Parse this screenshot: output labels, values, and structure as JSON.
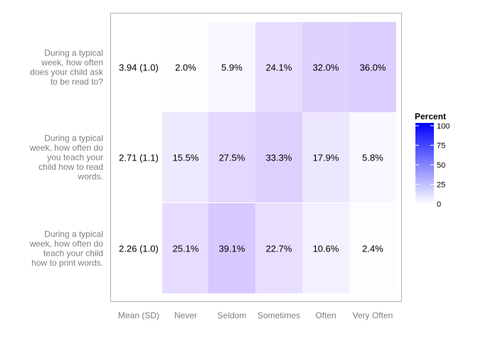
{
  "chart_data": {
    "type": "heatmap",
    "title": "",
    "xlabel": "",
    "ylabel": "",
    "columns": [
      "Mean (SD)",
      "Never",
      "Seldom",
      "Sometimes",
      "Often",
      "Very Often"
    ],
    "rows": [
      {
        "label_lines": [
          "During a typical",
          "week, how often",
          "does your child ask",
          "to be read to?"
        ],
        "mean_sd": "3.94 (1.0)",
        "values": [
          2.0,
          5.9,
          24.1,
          32.0,
          36.0
        ]
      },
      {
        "label_lines": [
          "During a typical",
          "week, how often do",
          "you teach your",
          "child how to read",
          "words."
        ],
        "mean_sd": "2.71 (1.1)",
        "values": [
          15.5,
          27.5,
          33.3,
          17.9,
          5.8
        ]
      },
      {
        "label_lines": [
          "During a typical",
          "week, how often do",
          "teach your child",
          "how to print words."
        ],
        "mean_sd": "2.26 (1.0)",
        "values": [
          25.1,
          39.1,
          22.7,
          10.6,
          2.4
        ]
      }
    ],
    "value_suffix": "%",
    "legend": {
      "title": "Percent",
      "ticks": [
        0,
        25,
        50,
        75,
        100
      ],
      "placement": "right",
      "low_color": "#ffffff",
      "high_color": "#0000ff"
    },
    "scale_range": [
      0,
      100
    ],
    "grid": false
  }
}
